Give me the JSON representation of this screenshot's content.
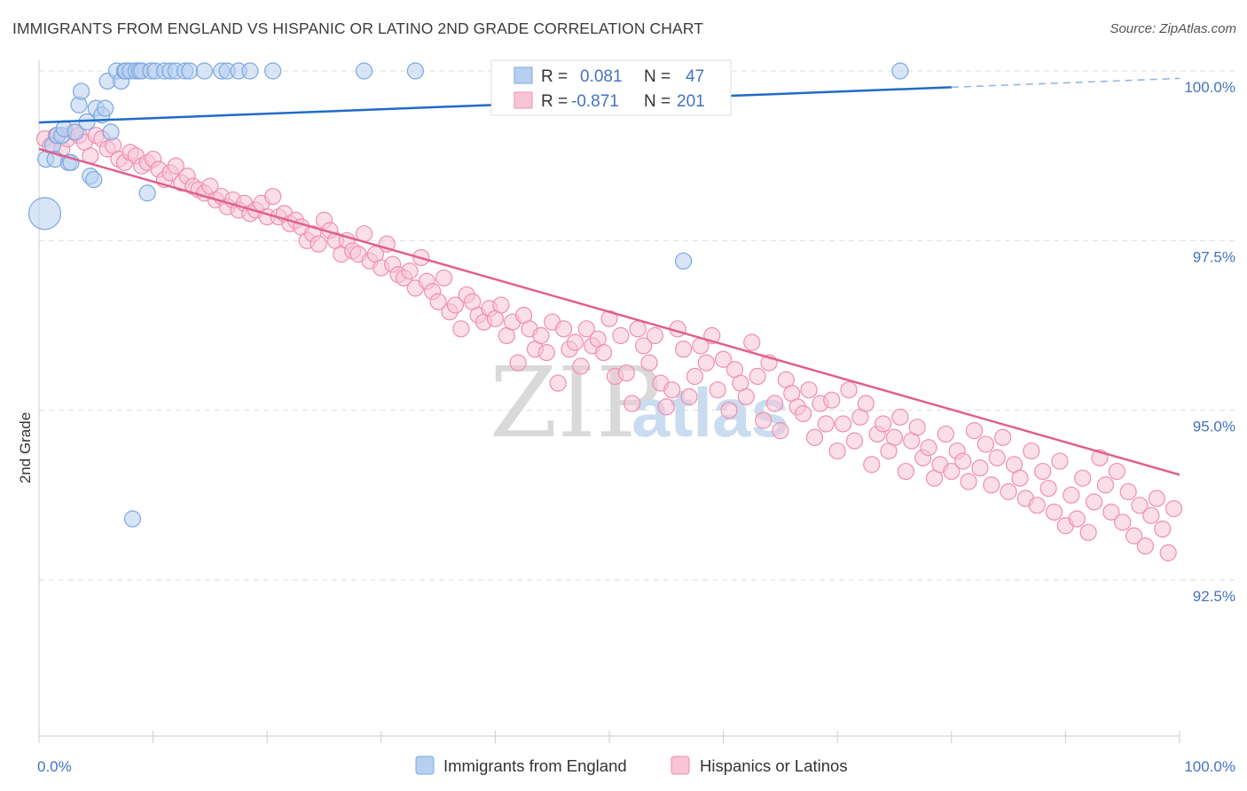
{
  "title": "IMMIGRANTS FROM ENGLAND VS HISPANIC OR LATINO 2ND GRADE CORRELATION CHART",
  "source": "Source: ZipAtlas.com",
  "watermark": {
    "zip": "ZIP",
    "atlas": "atlas"
  },
  "chart_data": {
    "type": "scatter",
    "xlabel": "",
    "ylabel": "2nd Grade",
    "xlim": [
      0,
      100
    ],
    "ylim": [
      90.2,
      100.4
    ],
    "x_tick_labels": [
      "0.0%",
      "100.0%"
    ],
    "y_ticks": [
      {
        "value": 100.0,
        "label": "100.0%"
      },
      {
        "value": 97.5,
        "label": "97.5%"
      },
      {
        "value": 95.0,
        "label": "95.0%"
      },
      {
        "value": 92.5,
        "label": "92.5%"
      }
    ],
    "grid": true,
    "legend_position": "top-center",
    "series": [
      {
        "name": "Immigrants from England",
        "color": "#7aa7e0",
        "fill": "#b8d0f0",
        "stats": {
          "r_label": "R =",
          "r_value": "0.081",
          "n_label": "N =",
          "n_value": "47"
        },
        "trend": {
          "x0": 0,
          "y0": 99.24,
          "x1": 80,
          "y1": 99.76,
          "dash_to_x": 100,
          "dash_to_y": 99.89,
          "color": "#1f6bc7"
        },
        "points": [
          [
            0.5,
            97.9,
            18
          ],
          [
            0.6,
            98.7,
            9
          ],
          [
            1.2,
            98.9,
            9
          ],
          [
            1.4,
            98.7,
            9
          ],
          [
            1.6,
            99.05,
            9
          ],
          [
            2.0,
            99.05,
            9
          ],
          [
            2.2,
            99.15,
            9
          ],
          [
            2.6,
            98.65,
            9
          ],
          [
            2.8,
            98.65,
            9
          ],
          [
            3.2,
            99.1,
            9
          ],
          [
            3.5,
            99.5,
            9
          ],
          [
            3.7,
            99.7,
            9
          ],
          [
            4.2,
            99.25,
            9
          ],
          [
            4.5,
            98.45,
            9
          ],
          [
            4.8,
            98.4,
            9
          ],
          [
            5.0,
            99.45,
            9
          ],
          [
            5.5,
            99.35,
            9
          ],
          [
            5.8,
            99.45,
            9
          ],
          [
            6.0,
            99.85,
            9
          ],
          [
            6.3,
            99.1,
            9
          ],
          [
            6.8,
            100.0,
            9
          ],
          [
            7.2,
            99.85,
            9
          ],
          [
            7.5,
            100.0,
            9
          ],
          [
            7.6,
            100.0,
            9
          ],
          [
            8.0,
            100.0,
            9
          ],
          [
            8.2,
            93.4,
            9
          ],
          [
            8.5,
            100.0,
            9
          ],
          [
            8.8,
            100.0,
            9
          ],
          [
            9.0,
            100.0,
            9
          ],
          [
            9.5,
            98.2,
            9
          ],
          [
            9.8,
            100.0,
            9
          ],
          [
            10.2,
            100.0,
            9
          ],
          [
            11.0,
            100.0,
            9
          ],
          [
            11.5,
            100.0,
            9
          ],
          [
            12.0,
            100.0,
            9
          ],
          [
            12.8,
            100.0,
            9
          ],
          [
            13.2,
            100.0,
            9
          ],
          [
            14.5,
            100.0,
            9
          ],
          [
            16.0,
            100.0,
            9
          ],
          [
            16.5,
            100.0,
            9
          ],
          [
            17.5,
            100.0,
            9
          ],
          [
            18.5,
            100.0,
            9
          ],
          [
            20.5,
            100.0,
            9
          ],
          [
            28.5,
            100.0,
            9
          ],
          [
            33.0,
            100.0,
            9
          ],
          [
            56.5,
            97.2,
            9
          ],
          [
            75.5,
            100.0,
            9
          ]
        ]
      },
      {
        "name": "Hispanics or Latinos",
        "color": "#f08db0",
        "fill": "#f8c4d6",
        "stats": {
          "r_label": "R =",
          "r_value": "-0.871",
          "n_label": "N =",
          "n_value": "201"
        },
        "trend": {
          "x0": 0,
          "y0": 98.85,
          "x1": 100,
          "y1": 94.05,
          "color": "#e0608e"
        },
        "points": [
          [
            0.5,
            99.0
          ],
          [
            1.0,
            98.9
          ],
          [
            1.5,
            99.05
          ],
          [
            2.0,
            98.85
          ],
          [
            2.5,
            99.0
          ],
          [
            3.0,
            99.1
          ],
          [
            3.5,
            99.05
          ],
          [
            4.0,
            98.95
          ],
          [
            4.5,
            98.75
          ],
          [
            5.0,
            99.05
          ],
          [
            5.5,
            99.0
          ],
          [
            6.0,
            98.85
          ],
          [
            6.5,
            98.9
          ],
          [
            7.0,
            98.7
          ],
          [
            7.5,
            98.65
          ],
          [
            8.0,
            98.8
          ],
          [
            8.5,
            98.75
          ],
          [
            9.0,
            98.6
          ],
          [
            9.5,
            98.65
          ],
          [
            10.0,
            98.7
          ],
          [
            10.5,
            98.55
          ],
          [
            11.0,
            98.4
          ],
          [
            11.5,
            98.5
          ],
          [
            12.0,
            98.6
          ],
          [
            12.5,
            98.35
          ],
          [
            13.0,
            98.45
          ],
          [
            13.5,
            98.3
          ],
          [
            14.0,
            98.25
          ],
          [
            14.5,
            98.2
          ],
          [
            15.0,
            98.3
          ],
          [
            15.5,
            98.1
          ],
          [
            16.0,
            98.15
          ],
          [
            16.5,
            98.0
          ],
          [
            17.0,
            98.1
          ],
          [
            17.5,
            97.95
          ],
          [
            18.0,
            98.05
          ],
          [
            18.5,
            97.9
          ],
          [
            19.0,
            97.95
          ],
          [
            19.5,
            98.05
          ],
          [
            20.0,
            97.85
          ],
          [
            20.5,
            98.15
          ],
          [
            21.0,
            97.85
          ],
          [
            21.5,
            97.9
          ],
          [
            22.0,
            97.75
          ],
          [
            22.5,
            97.8
          ],
          [
            23.0,
            97.7
          ],
          [
            23.5,
            97.5
          ],
          [
            24.0,
            97.6
          ],
          [
            24.5,
            97.45
          ],
          [
            25.0,
            97.8
          ],
          [
            25.5,
            97.65
          ],
          [
            26.0,
            97.5
          ],
          [
            26.5,
            97.3
          ],
          [
            27.0,
            97.5
          ],
          [
            27.5,
            97.35
          ],
          [
            28.0,
            97.3
          ],
          [
            28.5,
            97.6
          ],
          [
            29.0,
            97.2
          ],
          [
            29.5,
            97.3
          ],
          [
            30.0,
            97.1
          ],
          [
            30.5,
            97.45
          ],
          [
            31.0,
            97.15
          ],
          [
            31.5,
            97.0
          ],
          [
            32.0,
            96.95
          ],
          [
            32.5,
            97.05
          ],
          [
            33.0,
            96.8
          ],
          [
            33.5,
            97.25
          ],
          [
            34.0,
            96.9
          ],
          [
            34.5,
            96.75
          ],
          [
            35.0,
            96.6
          ],
          [
            35.5,
            96.95
          ],
          [
            36.0,
            96.45
          ],
          [
            36.5,
            96.55
          ],
          [
            37.0,
            96.2
          ],
          [
            37.5,
            96.7
          ],
          [
            38.0,
            96.6
          ],
          [
            38.5,
            96.4
          ],
          [
            39.0,
            96.3
          ],
          [
            39.5,
            96.5
          ],
          [
            40.0,
            96.35
          ],
          [
            40.5,
            96.55
          ],
          [
            41.0,
            96.1
          ],
          [
            41.5,
            96.3
          ],
          [
            42.0,
            95.7
          ],
          [
            42.5,
            96.4
          ],
          [
            43.0,
            96.2
          ],
          [
            43.5,
            95.9
          ],
          [
            44.0,
            96.1
          ],
          [
            44.5,
            95.85
          ],
          [
            45.0,
            96.3
          ],
          [
            45.5,
            95.4
          ],
          [
            46.0,
            96.2
          ],
          [
            46.5,
            95.9
          ],
          [
            47.0,
            96.0
          ],
          [
            47.5,
            95.65
          ],
          [
            48.0,
            96.2
          ],
          [
            48.5,
            95.95
          ],
          [
            49.0,
            96.05
          ],
          [
            49.5,
            95.85
          ],
          [
            50.0,
            96.35
          ],
          [
            50.5,
            95.5
          ],
          [
            51.0,
            96.1
          ],
          [
            51.5,
            95.55
          ],
          [
            52.0,
            95.1
          ],
          [
            52.5,
            96.2
          ],
          [
            53.0,
            95.95
          ],
          [
            53.5,
            95.7
          ],
          [
            54.0,
            96.1
          ],
          [
            54.5,
            95.4
          ],
          [
            55.0,
            95.05
          ],
          [
            55.5,
            95.3
          ],
          [
            56.0,
            96.2
          ],
          [
            56.5,
            95.9
          ],
          [
            57.0,
            95.2
          ],
          [
            57.5,
            95.5
          ],
          [
            58.0,
            95.95
          ],
          [
            58.5,
            95.7
          ],
          [
            59.0,
            96.1
          ],
          [
            59.5,
            95.3
          ],
          [
            60.0,
            95.75
          ],
          [
            60.5,
            95.0
          ],
          [
            61.0,
            95.6
          ],
          [
            61.5,
            95.4
          ],
          [
            62.0,
            95.2
          ],
          [
            62.5,
            96.0
          ],
          [
            63.0,
            95.5
          ],
          [
            63.5,
            94.85
          ],
          [
            64.0,
            95.7
          ],
          [
            64.5,
            95.1
          ],
          [
            65.0,
            94.7
          ],
          [
            65.5,
            95.45
          ],
          [
            66.0,
            95.25
          ],
          [
            66.5,
            95.05
          ],
          [
            67.0,
            94.95
          ],
          [
            67.5,
            95.3
          ],
          [
            68.0,
            94.6
          ],
          [
            68.5,
            95.1
          ],
          [
            69.0,
            94.8
          ],
          [
            69.5,
            95.15
          ],
          [
            70.0,
            94.4
          ],
          [
            70.5,
            94.8
          ],
          [
            71.0,
            95.3
          ],
          [
            71.5,
            94.55
          ],
          [
            72.0,
            94.9
          ],
          [
            72.5,
            95.1
          ],
          [
            73.0,
            94.2
          ],
          [
            73.5,
            94.65
          ],
          [
            74.0,
            94.8
          ],
          [
            74.5,
            94.4
          ],
          [
            75.0,
            94.6
          ],
          [
            75.5,
            94.9
          ],
          [
            76.0,
            94.1
          ],
          [
            76.5,
            94.55
          ],
          [
            77.0,
            94.75
          ],
          [
            77.5,
            94.3
          ],
          [
            78.0,
            94.45
          ],
          [
            78.5,
            94.0
          ],
          [
            79.0,
            94.2
          ],
          [
            79.5,
            94.65
          ],
          [
            80.0,
            94.1
          ],
          [
            80.5,
            94.4
          ],
          [
            81.0,
            94.25
          ],
          [
            81.5,
            93.95
          ],
          [
            82.0,
            94.7
          ],
          [
            82.5,
            94.15
          ],
          [
            83.0,
            94.5
          ],
          [
            83.5,
            93.9
          ],
          [
            84.0,
            94.3
          ],
          [
            84.5,
            94.6
          ],
          [
            85.0,
            93.8
          ],
          [
            85.5,
            94.2
          ],
          [
            86.0,
            94.0
          ],
          [
            86.5,
            93.7
          ],
          [
            87.0,
            94.4
          ],
          [
            87.5,
            93.6
          ],
          [
            88.0,
            94.1
          ],
          [
            88.5,
            93.85
          ],
          [
            89.0,
            93.5
          ],
          [
            89.5,
            94.25
          ],
          [
            90.0,
            93.3
          ],
          [
            90.5,
            93.75
          ],
          [
            91.0,
            93.4
          ],
          [
            91.5,
            94.0
          ],
          [
            92.0,
            93.2
          ],
          [
            92.5,
            93.65
          ],
          [
            93.0,
            94.3
          ],
          [
            93.5,
            93.9
          ],
          [
            94.0,
            93.5
          ],
          [
            94.5,
            94.1
          ],
          [
            95.0,
            93.35
          ],
          [
            95.5,
            93.8
          ],
          [
            96.0,
            93.15
          ],
          [
            96.5,
            93.6
          ],
          [
            97.0,
            93.0
          ],
          [
            97.5,
            93.45
          ],
          [
            98.0,
            93.7
          ],
          [
            98.5,
            93.25
          ],
          [
            99.0,
            92.9
          ],
          [
            99.5,
            93.55
          ]
        ]
      }
    ]
  }
}
